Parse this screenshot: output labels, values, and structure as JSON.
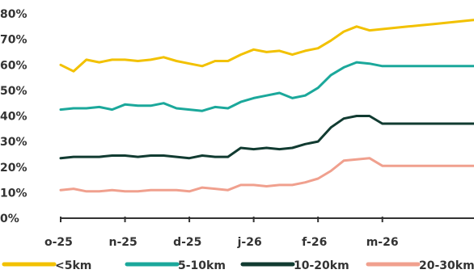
{
  "chart_data": {
    "type": "line",
    "title": "",
    "xlabel": "",
    "ylabel": "",
    "ylim": [
      0,
      80
    ],
    "y_ticks": [
      "0%",
      "10%",
      "20%",
      "30%",
      "40%",
      "50%",
      "60%",
      "70%",
      "80%"
    ],
    "x_tick_labels": [
      "o-25",
      "n-25",
      "d-25",
      "j-26",
      "f-26",
      "m-26"
    ],
    "x": [
      1,
      2,
      3,
      4,
      5,
      6,
      7,
      8,
      9,
      10,
      11,
      12,
      13,
      14,
      15,
      16,
      17,
      18,
      19,
      20,
      21,
      22,
      23,
      24,
      25,
      26,
      27,
      28,
      29,
      30,
      31,
      32,
      33,
      34
    ],
    "x_tick_at": [
      1,
      6,
      11,
      16,
      21,
      26
    ],
    "grid": false,
    "legend_position": "bottom",
    "series": [
      {
        "name": "<5km",
        "color": "#F2C100",
        "values": [
          60,
          57.5,
          62,
          61,
          62,
          62,
          61.5,
          62,
          63,
          61.5,
          60.5,
          59.5,
          61.5,
          61.5,
          64,
          66,
          65,
          65.5,
          64,
          65.5,
          66.5,
          69.5,
          73,
          75,
          73.5,
          74,
          74.5,
          75,
          75.5,
          76,
          76.5,
          77,
          77.5,
          78
        ]
      },
      {
        "name": "5-10km",
        "color": "#1BA89B",
        "values": [
          42.5,
          43,
          43,
          43.5,
          42.5,
          44.5,
          44,
          44,
          45,
          43,
          42.5,
          42,
          43.5,
          43,
          45.5,
          47,
          48,
          49,
          47,
          48,
          51,
          56,
          59,
          61,
          60.5,
          59.5,
          59.5,
          59.5,
          59.5,
          59.5,
          59.5,
          59.5,
          59.5,
          59.5
        ]
      },
      {
        "name": "10-20km",
        "color": "#113B31",
        "values": [
          23.5,
          24,
          24,
          24,
          24.5,
          24.5,
          24,
          24.5,
          24.5,
          24,
          23.5,
          24.5,
          24,
          24,
          27.5,
          27,
          27.5,
          27,
          27.5,
          29,
          30,
          35.5,
          39,
          40,
          40,
          37,
          37,
          37,
          37,
          37,
          37,
          37,
          37,
          37
        ]
      },
      {
        "name": "20-30km",
        "color": "#F0A08E",
        "values": [
          11,
          11.5,
          10.5,
          10.5,
          11,
          10.5,
          10.5,
          11,
          11,
          11,
          10.5,
          12,
          11.5,
          11,
          13,
          13,
          12.5,
          13,
          13,
          14,
          15.5,
          18.5,
          22.5,
          23,
          23.5,
          20.5,
          20.5,
          20.5,
          20.5,
          20.5,
          20.5,
          20.5,
          20.5,
          20.5
        ]
      }
    ]
  }
}
